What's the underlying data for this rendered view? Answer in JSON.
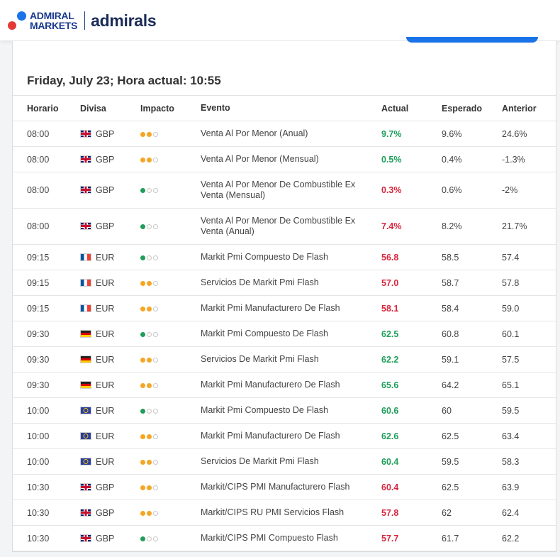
{
  "brand": {
    "old": [
      "ADMIRAL",
      "MARKETS"
    ],
    "new": "admirals"
  },
  "date_title": "Friday, July 23; Hora actual: 10:55",
  "headers": [
    "Horario",
    "Divisa",
    "Impacto",
    "Evento",
    "Actual",
    "Esperado",
    "Anterior"
  ],
  "colors": {
    "positive": "#1e9e5a",
    "negative": "#d7263d",
    "impact_medium": "#f5a623",
    "impact_low": "#1e9e5a"
  },
  "rows": [
    {
      "time": "08:00",
      "flag": "gb",
      "currency": "GBP",
      "impact": "medium",
      "event": "Venta Al Por Menor (Anual)",
      "actual": "9.7%",
      "trend": "up",
      "expected": "9.6%",
      "previous": "24.6%"
    },
    {
      "time": "08:00",
      "flag": "gb",
      "currency": "GBP",
      "impact": "medium",
      "event": "Venta Al Por Menor (Mensual)",
      "actual": "0.5%",
      "trend": "up",
      "expected": "0.4%",
      "previous": "-1.3%"
    },
    {
      "time": "08:00",
      "flag": "gb",
      "currency": "GBP",
      "impact": "low",
      "event": "Venta Al Por Menor De Combustible Ex Venta (Mensual)",
      "actual": "0.3%",
      "trend": "down",
      "expected": "0.6%",
      "previous": "-2%"
    },
    {
      "time": "08:00",
      "flag": "gb",
      "currency": "GBP",
      "impact": "low",
      "event": "Venta Al Por Menor De Combustible Ex Venta (Anual)",
      "actual": "7.4%",
      "trend": "down",
      "expected": "8.2%",
      "previous": "21.7%"
    },
    {
      "time": "09:15",
      "flag": "fr",
      "currency": "EUR",
      "impact": "low",
      "event": "Markit Pmi Compuesto De Flash",
      "actual": "56.8",
      "trend": "down",
      "expected": "58.5",
      "previous": "57.4"
    },
    {
      "time": "09:15",
      "flag": "fr",
      "currency": "EUR",
      "impact": "medium",
      "event": "Servicios De Markit Pmi Flash",
      "actual": "57.0",
      "trend": "down",
      "expected": "58.7",
      "previous": "57.8"
    },
    {
      "time": "09:15",
      "flag": "fr",
      "currency": "EUR",
      "impact": "medium",
      "event": "Markit Pmi Manufacturero De Flash",
      "actual": "58.1",
      "trend": "down",
      "expected": "58.4",
      "previous": "59.0"
    },
    {
      "time": "09:30",
      "flag": "de",
      "currency": "EUR",
      "impact": "low",
      "event": "Markit Pmi Compuesto De Flash",
      "actual": "62.5",
      "trend": "up",
      "expected": "60.8",
      "previous": "60.1"
    },
    {
      "time": "09:30",
      "flag": "de",
      "currency": "EUR",
      "impact": "medium",
      "event": "Servicios De Markit Pmi Flash",
      "actual": "62.2",
      "trend": "up",
      "expected": "59.1",
      "previous": "57.5"
    },
    {
      "time": "09:30",
      "flag": "de",
      "currency": "EUR",
      "impact": "medium",
      "event": "Markit Pmi Manufacturero De Flash",
      "actual": "65.6",
      "trend": "up",
      "expected": "64.2",
      "previous": "65.1"
    },
    {
      "time": "10:00",
      "flag": "eu",
      "currency": "EUR",
      "impact": "low",
      "event": "Markit Pmi Compuesto De Flash",
      "actual": "60.6",
      "trend": "up",
      "expected": "60",
      "previous": "59.5"
    },
    {
      "time": "10:00",
      "flag": "eu",
      "currency": "EUR",
      "impact": "medium",
      "event": "Markit Pmi Manufacturero De Flash",
      "actual": "62.6",
      "trend": "up",
      "expected": "62.5",
      "previous": "63.4"
    },
    {
      "time": "10:00",
      "flag": "eu",
      "currency": "EUR",
      "impact": "medium",
      "event": "Servicios De Markit Pmi Flash",
      "actual": "60.4",
      "trend": "up",
      "expected": "59.5",
      "previous": "58.3"
    },
    {
      "time": "10:30",
      "flag": "gb",
      "currency": "GBP",
      "impact": "medium",
      "event": "Markit/CIPS PMI Manufacturero Flash",
      "actual": "60.4",
      "trend": "down",
      "expected": "62.5",
      "previous": "63.9"
    },
    {
      "time": "10:30",
      "flag": "gb",
      "currency": "GBP",
      "impact": "medium",
      "event": "Markit/CIPS RU PMI Servicios Flash",
      "actual": "57.8",
      "trend": "down",
      "expected": "62",
      "previous": "62.4"
    },
    {
      "time": "10:30",
      "flag": "gb",
      "currency": "GBP",
      "impact": "low",
      "event": "Markit/CIPS PMI Compuesto Flash",
      "actual": "57.7",
      "trend": "down",
      "expected": "61.7",
      "previous": "62.2"
    }
  ]
}
